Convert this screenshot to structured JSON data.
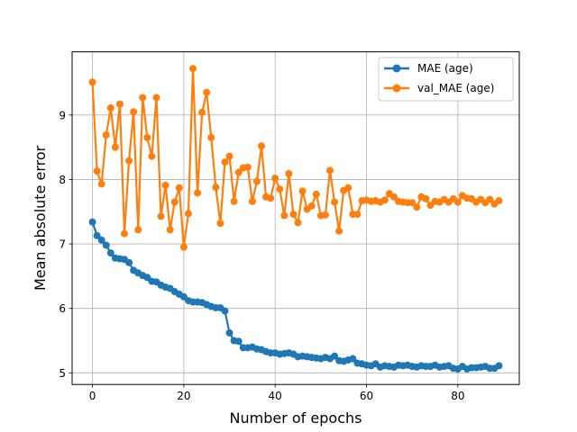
{
  "chart_data": {
    "type": "line",
    "title": "",
    "xlabel": "Number of epochs",
    "ylabel": "Mean absolute error",
    "xlim": [
      -4.45,
      93.45
    ],
    "ylim": [
      4.82,
      9.98
    ],
    "xticks": [
      0,
      20,
      40,
      60,
      80
    ],
    "yticks": [
      5,
      6,
      7,
      8,
      9
    ],
    "grid": true,
    "legend_position": "top-right",
    "x": [
      0,
      1,
      2,
      3,
      4,
      5,
      6,
      7,
      8,
      9,
      10,
      11,
      12,
      13,
      14,
      15,
      16,
      17,
      18,
      19,
      20,
      21,
      22,
      23,
      24,
      25,
      26,
      27,
      28,
      29,
      30,
      31,
      32,
      33,
      34,
      35,
      36,
      37,
      38,
      39,
      40,
      41,
      42,
      43,
      44,
      45,
      46,
      47,
      48,
      49,
      50,
      51,
      52,
      53,
      54,
      55,
      56,
      57,
      58,
      59,
      60,
      61,
      62,
      63,
      64,
      65,
      66,
      67,
      68,
      69,
      70,
      71,
      72,
      73,
      74,
      75,
      76,
      77,
      78,
      79,
      80,
      81,
      82,
      83,
      84,
      85,
      86,
      87,
      88,
      89
    ],
    "series": [
      {
        "name": "MAE (age)",
        "color": "#1f77b4",
        "values": [
          7.34,
          7.13,
          7.06,
          6.98,
          6.86,
          6.78,
          6.77,
          6.76,
          6.71,
          6.59,
          6.55,
          6.51,
          6.48,
          6.42,
          6.41,
          6.36,
          6.33,
          6.31,
          6.26,
          6.22,
          6.18,
          6.12,
          6.1,
          6.1,
          6.09,
          6.06,
          6.03,
          6.01,
          6.01,
          5.96,
          5.62,
          5.5,
          5.49,
          5.39,
          5.39,
          5.4,
          5.37,
          5.36,
          5.33,
          5.31,
          5.31,
          5.29,
          5.3,
          5.31,
          5.29,
          5.25,
          5.26,
          5.25,
          5.24,
          5.23,
          5.22,
          5.24,
          5.22,
          5.26,
          5.19,
          5.18,
          5.2,
          5.22,
          5.15,
          5.14,
          5.12,
          5.11,
          5.14,
          5.09,
          5.11,
          5.1,
          5.09,
          5.12,
          5.11,
          5.12,
          5.1,
          5.09,
          5.11,
          5.1,
          5.1,
          5.12,
          5.09,
          5.1,
          5.11,
          5.07,
          5.06,
          5.1,
          5.06,
          5.08,
          5.08,
          5.09,
          5.1,
          5.07,
          5.07,
          5.11
        ]
      },
      {
        "name": "val_MAE (age)",
        "color": "#ff7f0e",
        "values": [
          9.51,
          8.13,
          7.93,
          8.69,
          9.11,
          8.5,
          9.17,
          7.16,
          8.29,
          9.05,
          7.22,
          9.27,
          8.65,
          8.36,
          9.27,
          7.43,
          7.91,
          7.22,
          7.65,
          7.87,
          6.95,
          7.47,
          9.72,
          7.79,
          9.04,
          9.35,
          8.65,
          7.88,
          7.32,
          8.27,
          8.36,
          7.66,
          8.11,
          8.18,
          8.19,
          7.66,
          7.97,
          8.52,
          7.73,
          7.71,
          8.02,
          7.85,
          7.44,
          8.09,
          7.46,
          7.33,
          7.82,
          7.54,
          7.59,
          7.77,
          7.44,
          7.45,
          8.14,
          7.65,
          7.2,
          7.83,
          7.87,
          7.46,
          7.46,
          7.67,
          7.68,
          7.66,
          7.67,
          7.65,
          7.68,
          7.78,
          7.73,
          7.66,
          7.65,
          7.64,
          7.64,
          7.57,
          7.73,
          7.7,
          7.6,
          7.66,
          7.65,
          7.69,
          7.65,
          7.7,
          7.65,
          7.75,
          7.71,
          7.7,
          7.65,
          7.69,
          7.64,
          7.69,
          7.62,
          7.67
        ]
      }
    ]
  }
}
